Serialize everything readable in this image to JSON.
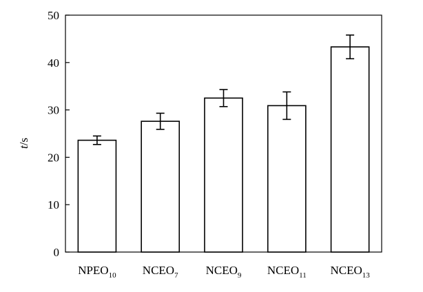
{
  "chart_data": {
    "type": "bar",
    "categories": [
      {
        "base": "NPEO",
        "sub": "10"
      },
      {
        "base": "NCEO",
        "sub": "7"
      },
      {
        "base": "NCEO",
        "sub": "9"
      },
      {
        "base": "NCEO",
        "sub": "11"
      },
      {
        "base": "NCEO",
        "sub": "13"
      }
    ],
    "values": [
      23.6,
      27.6,
      32.5,
      30.9,
      43.3
    ],
    "errors": [
      0.9,
      1.7,
      1.8,
      2.9,
      2.5
    ],
    "ylabel": {
      "italic": "t",
      "rest": "/s"
    },
    "ylim": [
      0,
      50
    ],
    "yticks": [
      "0",
      "10",
      "20",
      "30",
      "40",
      "50"
    ],
    "grid": false,
    "colors": {
      "bar_fill": "#ffffff",
      "bar_stroke": "#000000",
      "axis": "#000000"
    }
  }
}
